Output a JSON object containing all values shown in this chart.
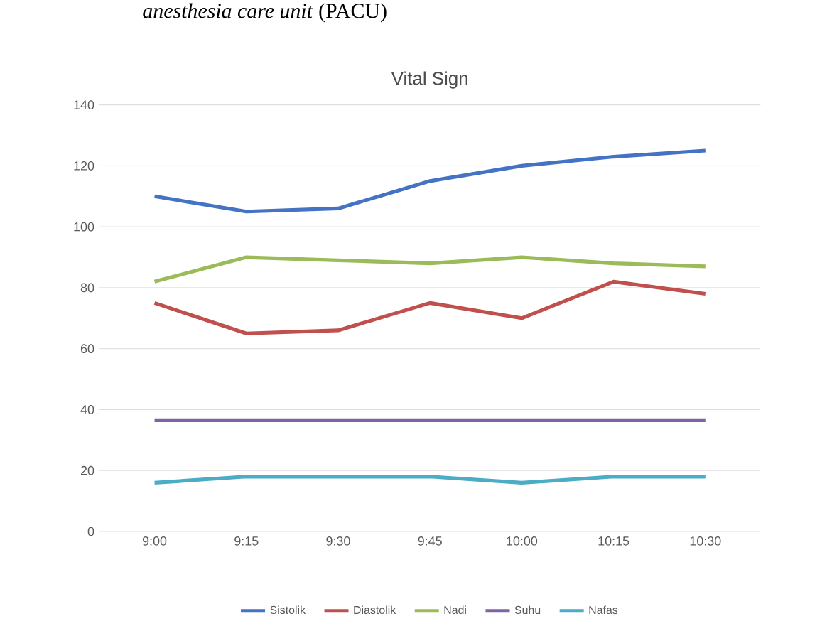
{
  "chart_data": {
    "type": "line",
    "title": "Vital Sign",
    "annotations": [
      "*anesthesia care unit* (PACU)"
    ],
    "categories": [
      "9:00",
      "9:15",
      "9:30",
      "9:45",
      "10:00",
      "10:15",
      "10:30"
    ],
    "series": [
      {
        "name": "Sistolik",
        "color": "#4472c4",
        "values": [
          110,
          105,
          106,
          115,
          120,
          123,
          125
        ]
      },
      {
        "name": "Diastolik",
        "color": "#c0504d",
        "values": [
          75,
          65,
          66,
          75,
          70,
          82,
          78
        ]
      },
      {
        "name": "Nadi",
        "color": "#9bbb59",
        "values": [
          82,
          90,
          89,
          88,
          90,
          88,
          87
        ]
      },
      {
        "name": "Suhu",
        "color": "#8064a2",
        "values": [
          36.5,
          36.5,
          36.5,
          36.5,
          36.5,
          36.5,
          36.5
        ]
      },
      {
        "name": "Nafas",
        "color": "#4bacc6",
        "values": [
          16,
          18,
          18,
          18,
          16,
          18,
          18
        ]
      }
    ],
    "ylim": [
      0,
      140
    ],
    "yticks": [
      0,
      20,
      40,
      60,
      80,
      100,
      120,
      140
    ],
    "grid": "y",
    "legend": "bottom",
    "marker": "none",
    "line_style": "solid"
  }
}
